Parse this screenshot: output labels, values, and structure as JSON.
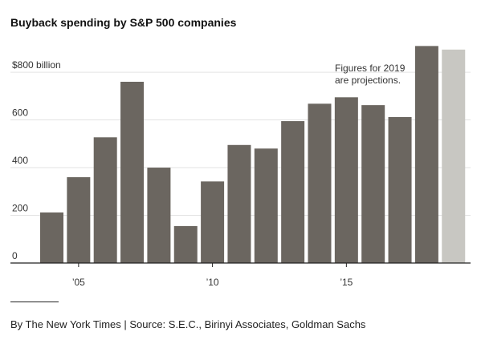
{
  "title": "Buyback spending by S&P 500 companies",
  "footer": "By The New York Times | Source: S.E.C., Birinyi Associates, Goldman Sachs",
  "chart_data": {
    "type": "bar",
    "title": "Buyback spending by S&P 500 companies",
    "xlabel": "",
    "ylabel": "",
    "categories": [
      "2004",
      "2005",
      "2006",
      "2007",
      "2008",
      "2009",
      "2010",
      "2011",
      "2012",
      "2013",
      "2014",
      "2015",
      "2016",
      "2017",
      "2018",
      "2019"
    ],
    "values": [
      212,
      360,
      527,
      760,
      400,
      155,
      342,
      495,
      480,
      595,
      668,
      695,
      662,
      612,
      910,
      895
    ],
    "projected": [
      false,
      false,
      false,
      false,
      false,
      false,
      false,
      false,
      false,
      false,
      false,
      false,
      false,
      false,
      false,
      true
    ],
    "ylim": [
      0,
      920
    ],
    "yticks": [
      {
        "value": 0,
        "label": "0"
      },
      {
        "value": 200,
        "label": "200"
      },
      {
        "value": 400,
        "label": "400"
      },
      {
        "value": 600,
        "label": "600"
      },
      {
        "value": 800,
        "label": "$800 billion"
      }
    ],
    "xticks": [
      {
        "category": "2005",
        "label": "’05"
      },
      {
        "category": "2010",
        "label": "’10"
      },
      {
        "category": "2015",
        "label": "’15"
      }
    ],
    "annotation": {
      "lines": [
        "Figures for 2019",
        "are projections."
      ]
    },
    "grid": true,
    "colors": {
      "bar": "#6b6660",
      "projected": "#c8c7c2",
      "grid": "#e3e3e3",
      "axis": "#222222",
      "tick_text": "#333333"
    }
  }
}
